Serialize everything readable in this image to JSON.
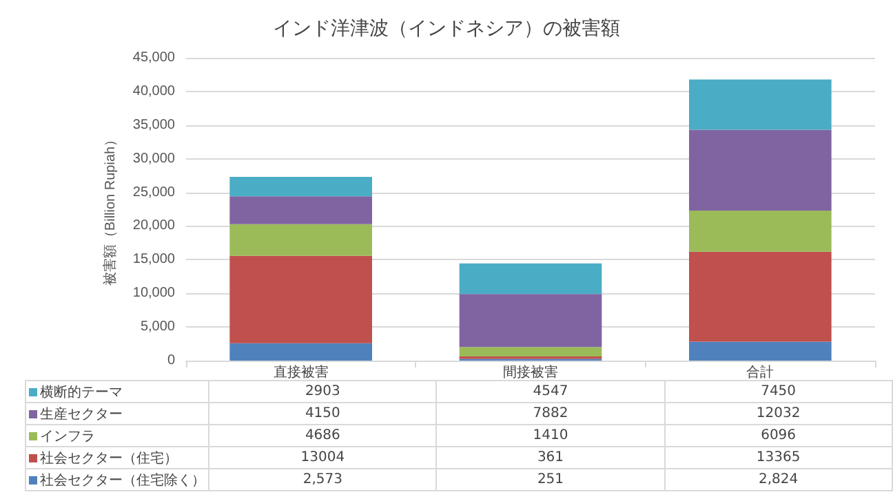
{
  "chart_data": {
    "type": "bar",
    "title": "インド洋津波（インドネシア）の被害額",
    "ylabel": "被害額（Billion Rupiah）",
    "categories": [
      "直接被害",
      "間接被害",
      "合計"
    ],
    "stacked": true,
    "series": [
      {
        "name": "社会セクター（住宅除く）",
        "color": "#4f81bd",
        "values": [
          2573,
          251,
          2824
        ],
        "value_labels": [
          "2,573",
          "251",
          "2,824"
        ]
      },
      {
        "name": "社会セクター（住宅）",
        "color": "#c0504d",
        "values": [
          13004,
          361,
          13365
        ],
        "value_labels": [
          "13004",
          "361",
          "13365"
        ]
      },
      {
        "name": "インフラ",
        "color": "#9bbb59",
        "values": [
          4686,
          1410,
          6096
        ],
        "value_labels": [
          "4686",
          "1410",
          "6096"
        ]
      },
      {
        "name": "生産セクター",
        "color": "#8064a2",
        "values": [
          4150,
          7882,
          12032
        ],
        "value_labels": [
          "4150",
          "7882",
          "12032"
        ]
      },
      {
        "name": "横断的テーマ",
        "color": "#4bacc6",
        "values": [
          2903,
          4547,
          7450
        ],
        "value_labels": [
          "2903",
          "4547",
          "7450"
        ]
      }
    ],
    "ylim": [
      0,
      45000
    ],
    "yticks": [
      {
        "value": 0,
        "label": "0"
      },
      {
        "value": 5000,
        "label": "5,000"
      },
      {
        "value": 10000,
        "label": "10,000"
      },
      {
        "value": 15000,
        "label": "15,000"
      },
      {
        "value": 20000,
        "label": "20,000"
      },
      {
        "value": 25000,
        "label": "25,000"
      },
      {
        "value": 30000,
        "label": "30,000"
      },
      {
        "value": 35000,
        "label": "35,000"
      },
      {
        "value": 40000,
        "label": "40,000"
      },
      {
        "value": 45000,
        "label": "45,000"
      }
    ],
    "grid": "y",
    "legend": "bottom"
  }
}
